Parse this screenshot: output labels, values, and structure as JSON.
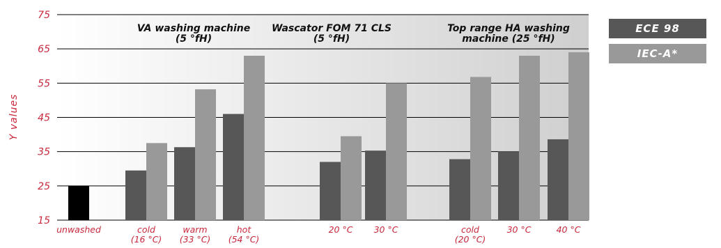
{
  "chart_data": {
    "type": "bar",
    "ylabel": "Y values",
    "xlabel": "",
    "ylim": [
      15,
      75
    ],
    "yticks": [
      15,
      25,
      35,
      45,
      55,
      65,
      75
    ],
    "grid": true,
    "legend_position": "right",
    "groups": [
      {
        "label": "VA washing machine\n(5 °fH)",
        "category_indices": [
          1,
          2,
          3
        ]
      },
      {
        "label": "Wascator FOM 71 CLS\n(5 °fH)",
        "category_indices": [
          4,
          5
        ]
      },
      {
        "label": "Top range HA washing\nmachine (25 °fH)",
        "category_indices": [
          6,
          7,
          8
        ]
      }
    ],
    "categories": [
      "unwashed",
      "cold\n(16 °C)",
      "warm\n(33 °C)",
      "hot\n(54 °C)",
      "20 °C",
      "30 °C",
      "cold\n(20 °C)",
      "30 °C",
      "40 °C"
    ],
    "reference": {
      "category": "unwashed",
      "value": 25,
      "color": "#000000"
    },
    "series": [
      {
        "name": "ECE 98",
        "color": "#575757",
        "values": [
          null,
          29.5,
          36.3,
          46,
          32,
          35.3,
          32.8,
          35.1,
          38.6
        ]
      },
      {
        "name": "IEC-A*",
        "color": "#999999",
        "values": [
          null,
          37.5,
          53.2,
          63,
          39.5,
          55,
          56.8,
          63,
          64
        ]
      }
    ]
  },
  "colors": {
    "tick_text": "#c8283c",
    "grid": "#000000",
    "background_start": "#ffffff",
    "background_end": "#cfcfcf"
  }
}
